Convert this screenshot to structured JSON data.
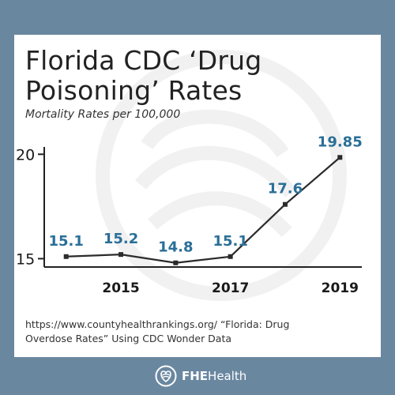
{
  "header": {
    "title_line1": "Florida CDC ‘Drug",
    "title_line2": "Poisoning’ Rates",
    "subtitle": "Mortality Rates per 100,000"
  },
  "source": {
    "line1": "https://www.countyhealthrankings.org/ “Florida: Drug",
    "line2": "Overdose Rates” Using CDC Wonder Data"
  },
  "footer": {
    "logo_strong": "FHE",
    "logo_rest": "Health"
  },
  "colors": {
    "background": "#6a87a0",
    "line": "#2b2b2b",
    "value_labels": "#2a6f97",
    "axis_text": "#1a1a1a",
    "logo": "#ffffff"
  },
  "chart_data": {
    "type": "line",
    "x": [
      2014,
      2015,
      2016,
      2017,
      2018,
      2019
    ],
    "xticks": [
      2015,
      2017,
      2019
    ],
    "xtick_labels": [
      "2015",
      "2017",
      "2019"
    ],
    "series": [
      {
        "values": [
          15.1,
          15.2,
          14.8,
          15.1,
          17.6,
          19.85
        ]
      }
    ],
    "value_labels": [
      "15.1",
      "15.2",
      "14.8",
      "15.1",
      "17.6",
      "19.85"
    ],
    "yticks": [
      15,
      20
    ],
    "ytick_labels": [
      "15",
      "20"
    ],
    "ylim": [
      14.6,
      20.2
    ],
    "xlim": [
      2013.6,
      2019.4
    ],
    "grid": false,
    "legend": "none"
  }
}
